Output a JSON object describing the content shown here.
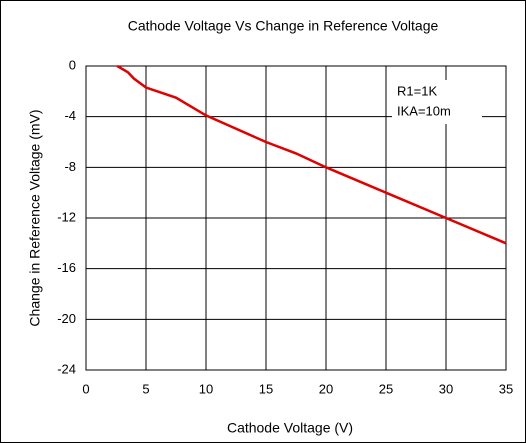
{
  "chart_data": {
    "type": "line",
    "title": "Cathode Voltage Vs Change in Reference Voltage",
    "x_label": "Cathode Voltage (V)",
    "y_label": "Change in Reference Voltage (mV)",
    "x": [
      2.6,
      3.5,
      4,
      5,
      7.5,
      10,
      15,
      17.5,
      20,
      25,
      30,
      35
    ],
    "series": [
      {
        "name": "IKA=10m",
        "color": "#e00000",
        "values": [
          0,
          -0.5,
          -1,
          -1.7,
          -2.5,
          -3.9,
          -6,
          -6.9,
          -8,
          -10,
          -12,
          -14
        ]
      }
    ],
    "xlim": [
      0,
      35
    ],
    "xticks": [
      0,
      5,
      10,
      15,
      20,
      25,
      30,
      35
    ],
    "ylim": [
      -24,
      0
    ],
    "yticks": [
      0,
      -4,
      -8,
      -12,
      -16,
      -20,
      -24
    ],
    "grid": true,
    "annotations": [
      "R1=1K",
      "IKA=10m"
    ]
  }
}
